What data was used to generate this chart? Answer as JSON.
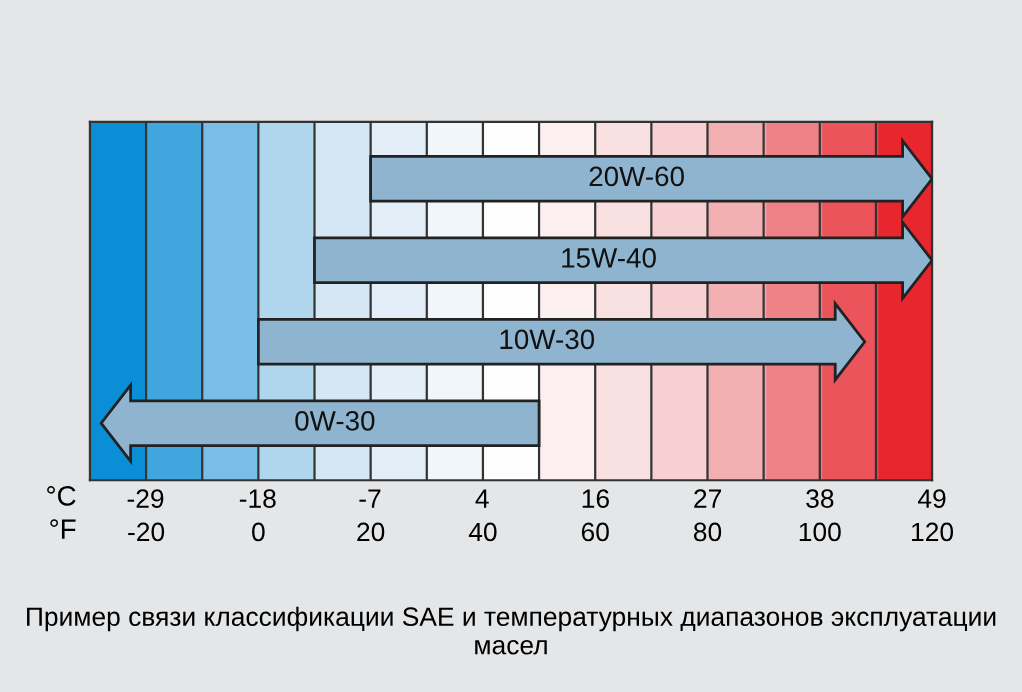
{
  "chart_data": {
    "type": "bar",
    "orientation": "horizontal",
    "categories": [
      "20W-60",
      "15W-40",
      "10W-30",
      "0W-30"
    ],
    "series": [
      {
        "color": "#8fb4cf",
        "base": [
          20,
          10,
          0,
          -28
        ],
        "values": [
          100,
          110,
          108,
          78
        ]
      }
    ],
    "xlim": [
      -30,
      120
    ],
    "xticks": [
      {
        "value": -30,
        "label": null
      },
      -20,
      {
        "value": -10,
        "label": null
      },
      0,
      {
        "value": 10,
        "label": null
      },
      20,
      {
        "value": 30,
        "label": null
      },
      40,
      {
        "value": 50,
        "label": null
      },
      60,
      {
        "value": 70,
        "label": null
      },
      80,
      {
        "value": 90,
        "label": null
      },
      100,
      {
        "value": 110,
        "label": null
      },
      120
    ],
    "xlabel": "°F",
    "x2lim": [
      -34.4,
      48.9
    ],
    "x2ticks": [
      {
        "value": -28.9,
        "label": "-29"
      },
      {
        "value": -17.8,
        "label": "-18"
      },
      {
        "value": -6.7,
        "label": "-7"
      },
      {
        "value": 4.4,
        "label": "4"
      },
      {
        "value": 15.6,
        "label": "16"
      },
      {
        "value": 26.7,
        "label": "27"
      },
      {
        "value": 37.8,
        "label": "38"
      },
      {
        "value": 48.9,
        "label": "49"
      }
    ],
    "x2label": "°C",
    "grid": "x",
    "tick_labels": "x",
    "annotations": [
      "Пример связи классификации SAE и температурных диапазонов эксплуатации масел"
    ]
  }
}
